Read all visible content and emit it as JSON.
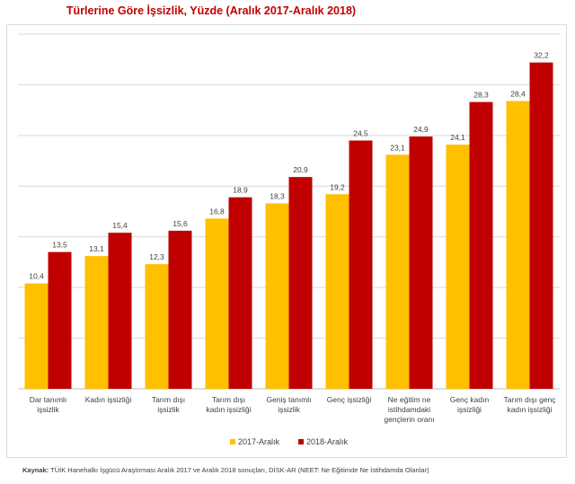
{
  "chart_data": {
    "type": "bar",
    "title": "Türlerine Göre İşsizlik, Yüzde (Aralık 2017-Aralık 2018)",
    "categories": [
      [
        "Dar tanımlı",
        "işsizlik"
      ],
      [
        "Kadın işsizliği"
      ],
      [
        "Tarım dışı",
        "işsizlik"
      ],
      [
        "Tarım dışı",
        "kadın işsizliği"
      ],
      [
        "Geniş tanımlı",
        "işsizlik"
      ],
      [
        "Genç işsizliği"
      ],
      [
        "Ne eğitim ne",
        "istihdamdaki",
        "gençlerin oranı"
      ],
      [
        "Genç kadın",
        "işsizliği"
      ],
      [
        "Tarım dışı genç",
        "kadın işsizliği"
      ]
    ],
    "series": [
      {
        "name": "2017-Aralık",
        "color": "#ffc000",
        "values": [
          10.4,
          13.1,
          12.3,
          16.8,
          18.3,
          19.2,
          23.1,
          24.1,
          28.4
        ],
        "labels": [
          "10,4",
          "13,1",
          "12,3",
          "16,8",
          "18,3",
          "19,2",
          "23,1",
          "24,1",
          "28,4"
        ]
      },
      {
        "name": "2018-Aralık",
        "color": "#c00000",
        "values": [
          13.5,
          15.4,
          15.6,
          18.9,
          20.9,
          24.5,
          24.9,
          28.3,
          32.2
        ],
        "labels": [
          "13,5",
          "15,4",
          "15,6",
          "18,9",
          "20,9",
          "24,5",
          "24,9",
          "28,3",
          "32,2"
        ]
      }
    ],
    "ylim": [
      0,
      35
    ],
    "grid": true,
    "legend": "bottom",
    "xlabel": "",
    "ylabel": ""
  },
  "source": {
    "prefix": "Kaynak:",
    "text": " TÜİK Hanehalkı İşgücü Araştırması Aralık 2017 ve Aralık 2018 sonuçları, DİSK-AR (NEET: Ne Eğitimde Ne İstihdamda Olanlar)"
  }
}
